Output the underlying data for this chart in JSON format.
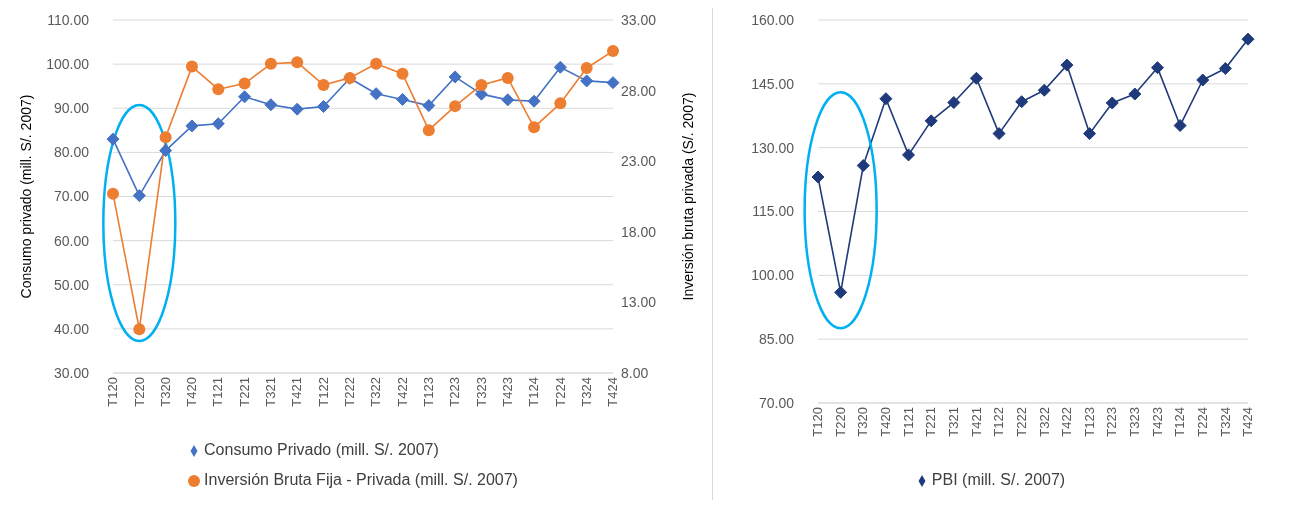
{
  "chart_data": [
    {
      "type": "line",
      "categories": [
        "T120",
        "T220",
        "T320",
        "T420",
        "T121",
        "T221",
        "T321",
        "T421",
        "T122",
        "T222",
        "T322",
        "T422",
        "T123",
        "T223",
        "T323",
        "T423",
        "T124",
        "T224",
        "T324",
        "T424"
      ],
      "ylabel": "Consumo privado (mill. S/. 2007)",
      "y2label": "Inversión  bruta privada (S/. 2007)",
      "ylim": [
        30,
        110
      ],
      "yticks": [
        {
          "value": 30,
          "label": "30.00"
        },
        {
          "value": 40,
          "label": "40.00"
        },
        {
          "value": 50,
          "label": "50.00"
        },
        {
          "value": 60,
          "label": "60.00"
        },
        {
          "value": 70,
          "label": "70.00"
        },
        {
          "value": 80,
          "label": "80.00"
        },
        {
          "value": 90,
          "label": "90.00"
        },
        {
          "value": 100,
          "label": "100.00"
        },
        {
          "value": 110,
          "label": "110.00"
        }
      ],
      "y2lim": [
        8,
        33
      ],
      "y2ticks": [
        {
          "value": 8,
          "label": "8.00"
        },
        {
          "value": 13,
          "label": "13.00"
        },
        {
          "value": 18,
          "label": "18.00"
        },
        {
          "value": 23,
          "label": "23.00"
        },
        {
          "value": 28,
          "label": "28.00"
        },
        {
          "value": 33,
          "label": "33.00"
        }
      ],
      "grid": "y",
      "legend": "bottom",
      "series": [
        {
          "name": "Consumo Privado (mill. S/. 2007)",
          "color": "#4472c4",
          "marker": "diamond",
          "values": [
            83.0,
            70.2,
            80.4,
            86.0,
            86.5,
            92.6,
            90.8,
            89.8,
            90.4,
            96.8,
            93.3,
            92.0,
            90.6,
            97.1,
            93.2,
            91.9,
            91.6,
            99.3,
            96.2,
            95.8
          ]
        },
        {
          "name": "Inversión Bruta Fija - Privada (mill. S/. 2007)",
          "color": "#ed7d31",
          "marker": "circle",
          "axis": "y2",
          "values": [
            20.7,
            11.1,
            24.7,
            29.7,
            28.1,
            28.5,
            29.9,
            30.0,
            28.4,
            28.9,
            29.9,
            29.2,
            25.2,
            26.9,
            28.4,
            28.9,
            25.4,
            27.1,
            29.6,
            30.8
          ]
        }
      ]
    },
    {
      "type": "line",
      "categories": [
        "T120",
        "T220",
        "T320",
        "T420",
        "T121",
        "T221",
        "T321",
        "T421",
        "T122",
        "T222",
        "T322",
        "T422",
        "T123",
        "T223",
        "T323",
        "T423",
        "T124",
        "T224",
        "T324",
        "T424"
      ],
      "ylim": [
        70,
        160
      ],
      "yticks": [
        {
          "value": 70,
          "label": "70.00"
        },
        {
          "value": 85,
          "label": "85.00"
        },
        {
          "value": 100,
          "label": "100.00"
        },
        {
          "value": 115,
          "label": "115.00"
        },
        {
          "value": 130,
          "label": "130.00"
        },
        {
          "value": 145,
          "label": "145.00"
        },
        {
          "value": 160,
          "label": "160.00"
        }
      ],
      "grid": "y",
      "legend": "bottom",
      "series": [
        {
          "name": "PBI (mill. S/. 2007)",
          "color": "#1f3a7a",
          "marker": "diamond",
          "values": [
            123.1,
            96.0,
            125.8,
            141.5,
            128.3,
            136.3,
            140.6,
            146.3,
            133.3,
            140.8,
            143.5,
            149.4,
            133.3,
            140.5,
            142.6,
            148.8,
            135.2,
            145.9,
            148.6,
            155.5
          ]
        }
      ]
    }
  ]
}
